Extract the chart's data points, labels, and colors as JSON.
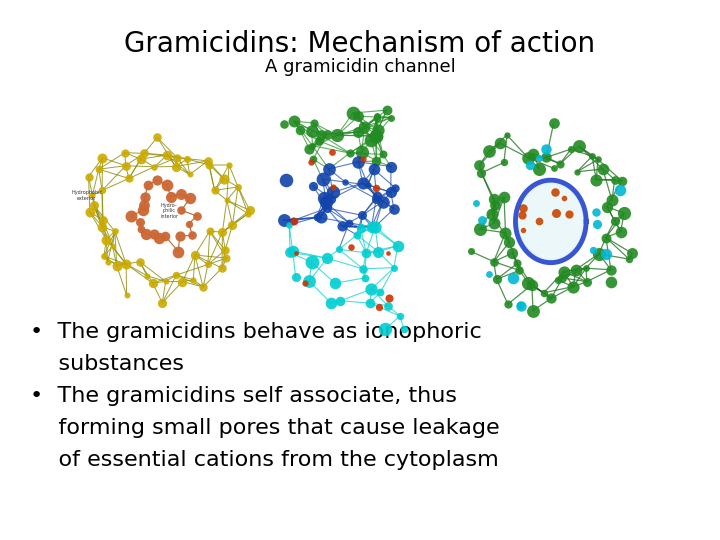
{
  "title": "Gramicidins: Mechanism of action",
  "subtitle": "A gramicidin channel",
  "bullet1_line1": "•  The gramicidins behave as ionophoric",
  "bullet1_line2": "    substances",
  "bullet2_line1": "•  The gramicidins self associate, thus",
  "bullet2_line2": "    forming small pores that cause leakage",
  "bullet2_line3": "    of essential cations from the cytoplasm",
  "title_fontsize": 20,
  "subtitle_fontsize": 13,
  "bullet_fontsize": 16,
  "bg_color": "#ffffff",
  "text_color": "#000000",
  "title_font_weight": "normal",
  "bullet_font_weight": "normal"
}
